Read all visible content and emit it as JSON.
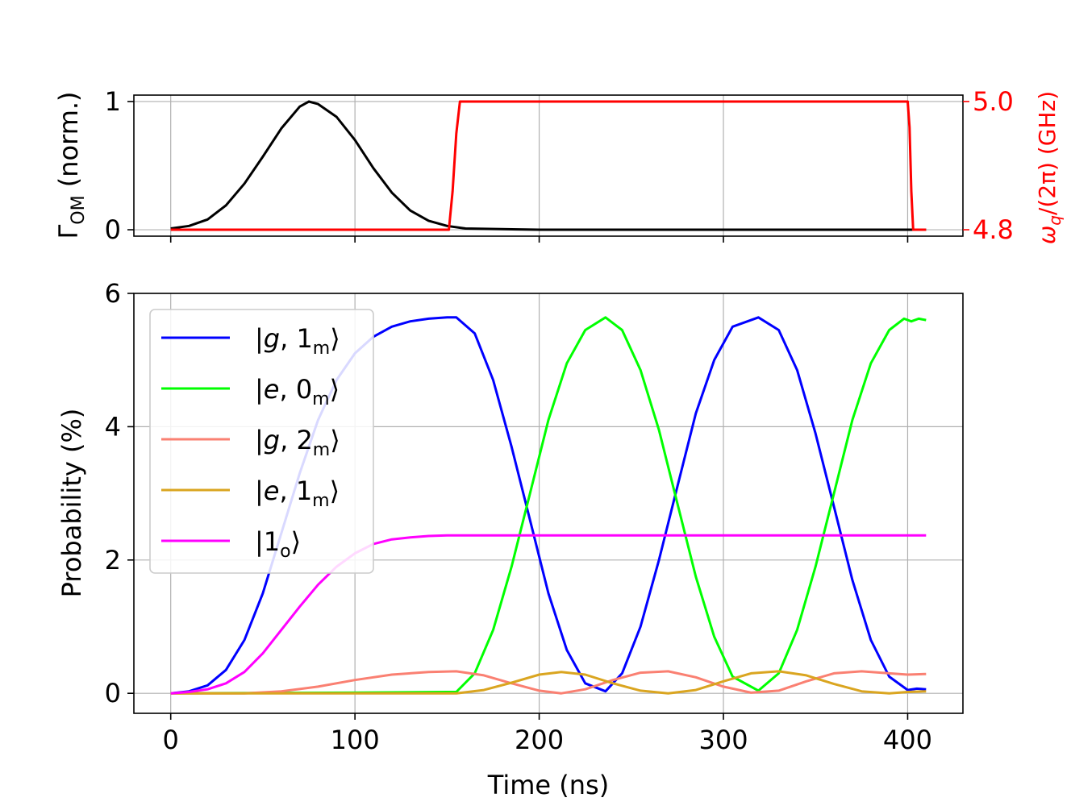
{
  "chart_data": [
    {
      "type": "line",
      "panel": "top",
      "xlabel": "",
      "ylabel_main": "Γ",
      "ylabel_sub": "OM",
      "ylabel_rest": " (norm.)",
      "xlim": [
        -20,
        430
      ],
      "ylim": [
        -0.05,
        1.05
      ],
      "yticks": [
        0,
        1
      ],
      "ytick_labels": [
        "0",
        "1"
      ],
      "xticks": [
        0,
        100,
        200,
        300,
        400
      ],
      "grid": true,
      "series": [
        {
          "name": "Γ_OM",
          "color": "#000000",
          "axis": "left",
          "x": [
            0,
            10,
            20,
            30,
            40,
            50,
            60,
            70,
            75,
            80,
            90,
            100,
            110,
            120,
            130,
            140,
            150,
            160,
            200,
            300,
            400,
            410
          ],
          "values": [
            0.01,
            0.03,
            0.08,
            0.19,
            0.36,
            0.57,
            0.79,
            0.96,
            1.0,
            0.98,
            0.88,
            0.7,
            0.48,
            0.29,
            0.15,
            0.07,
            0.03,
            0.01,
            0.0,
            0.0,
            0.0,
            0.0
          ]
        },
        {
          "name": "ω_q/(2π)",
          "color": "#ff0000",
          "axis": "right",
          "x": [
            0,
            151,
            153,
            155,
            157,
            400,
            401,
            402,
            403,
            410
          ],
          "values": [
            4.8,
            4.8,
            4.86,
            4.95,
            5.0,
            5.0,
            4.96,
            4.86,
            4.8,
            4.8
          ]
        }
      ],
      "right_axis": {
        "label_main": "ω",
        "label_sub": "q",
        "label_rest": "/(2π) (GHz)",
        "ylim": [
          4.79,
          5.01
        ],
        "yticks": [
          4.8,
          5.0
        ],
        "ytick_labels": [
          "4.8",
          "5.0"
        ],
        "color": "#ff0000"
      }
    },
    {
      "type": "line",
      "panel": "bottom",
      "xlabel": "Time (ns)",
      "ylabel": "Probability (%)",
      "xlim": [
        -20,
        430
      ],
      "ylim": [
        -0.3,
        6.0
      ],
      "xticks": [
        0,
        100,
        200,
        300,
        400
      ],
      "xtick_labels": [
        "0",
        "100",
        "200",
        "300",
        "400"
      ],
      "yticks": [
        0,
        2,
        4,
        6
      ],
      "ytick_labels": [
        "0",
        "2",
        "4",
        "6"
      ],
      "grid": true,
      "legend": "upper-left",
      "series": [
        {
          "name": "|g,1m⟩",
          "legend_main": "|g, 1",
          "legend_sub": "m",
          "legend_end": "⟩",
          "color": "#0000ff",
          "x": [
            0,
            10,
            20,
            30,
            40,
            50,
            60,
            70,
            80,
            90,
            100,
            110,
            120,
            130,
            140,
            150,
            155,
            165,
            175,
            185,
            195,
            205,
            215,
            225,
            236,
            245,
            255,
            265,
            275,
            285,
            295,
            305,
            319,
            330,
            340,
            350,
            360,
            370,
            380,
            390,
            400,
            405,
            410
          ],
          "values": [
            0.0,
            0.03,
            0.12,
            0.35,
            0.8,
            1.5,
            2.4,
            3.3,
            4.1,
            4.7,
            5.1,
            5.35,
            5.5,
            5.58,
            5.62,
            5.64,
            5.64,
            5.4,
            4.7,
            3.7,
            2.6,
            1.5,
            0.65,
            0.15,
            0.03,
            0.3,
            1.0,
            2.0,
            3.1,
            4.2,
            5.0,
            5.5,
            5.64,
            5.45,
            4.85,
            3.9,
            2.8,
            1.7,
            0.8,
            0.25,
            0.05,
            0.07,
            0.06
          ]
        },
        {
          "name": "|e,0m⟩",
          "legend_main": "|e, 0",
          "legend_sub": "m",
          "legend_end": "⟩",
          "color": "#00ff00",
          "x": [
            0,
            100,
            150,
            155,
            165,
            175,
            185,
            195,
            205,
            215,
            225,
            236,
            245,
            255,
            265,
            275,
            285,
            295,
            305,
            319,
            330,
            340,
            350,
            360,
            370,
            380,
            390,
            398,
            402,
            406,
            410
          ],
          "values": [
            0.0,
            0.01,
            0.02,
            0.02,
            0.3,
            0.95,
            1.9,
            3.0,
            4.1,
            4.95,
            5.45,
            5.64,
            5.45,
            4.85,
            3.95,
            2.85,
            1.75,
            0.85,
            0.25,
            0.04,
            0.3,
            0.95,
            1.9,
            3.0,
            4.1,
            4.95,
            5.45,
            5.62,
            5.58,
            5.62,
            5.6
          ]
        },
        {
          "name": "|g,2m⟩",
          "legend_main": "|g, 2",
          "legend_sub": "m",
          "legend_end": "⟩",
          "color": "#fa8072",
          "x": [
            0,
            40,
            60,
            80,
            100,
            120,
            140,
            155,
            170,
            185,
            200,
            212,
            225,
            240,
            255,
            270,
            285,
            300,
            315,
            330,
            345,
            360,
            375,
            390,
            400,
            410
          ],
          "values": [
            0.0,
            0.0,
            0.03,
            0.1,
            0.2,
            0.28,
            0.32,
            0.33,
            0.27,
            0.15,
            0.04,
            0.0,
            0.06,
            0.2,
            0.31,
            0.33,
            0.24,
            0.1,
            0.01,
            0.04,
            0.18,
            0.3,
            0.33,
            0.3,
            0.28,
            0.29
          ]
        },
        {
          "name": "|e,1m⟩",
          "legend_main": "|e, 1",
          "legend_sub": "m",
          "legend_end": "⟩",
          "color": "#daa520",
          "x": [
            0,
            100,
            150,
            155,
            170,
            185,
            200,
            212,
            225,
            240,
            255,
            270,
            285,
            300,
            315,
            330,
            345,
            360,
            375,
            390,
            400,
            410
          ],
          "values": [
            0.0,
            0.0,
            0.0,
            0.0,
            0.05,
            0.16,
            0.28,
            0.32,
            0.28,
            0.15,
            0.04,
            0.0,
            0.05,
            0.18,
            0.3,
            0.33,
            0.27,
            0.14,
            0.03,
            0.0,
            0.02,
            0.03
          ]
        },
        {
          "name": "|1o⟩",
          "legend_main": "|1",
          "legend_sub": "o",
          "legend_end": "⟩",
          "color": "#ff00ff",
          "x": [
            0,
            10,
            20,
            30,
            40,
            50,
            60,
            70,
            80,
            90,
            100,
            110,
            120,
            130,
            140,
            150,
            160,
            200,
            300,
            410
          ],
          "values": [
            0.0,
            0.02,
            0.06,
            0.15,
            0.32,
            0.6,
            0.95,
            1.3,
            1.63,
            1.9,
            2.1,
            2.24,
            2.31,
            2.34,
            2.36,
            2.37,
            2.37,
            2.37,
            2.37,
            2.37
          ]
        }
      ]
    }
  ]
}
